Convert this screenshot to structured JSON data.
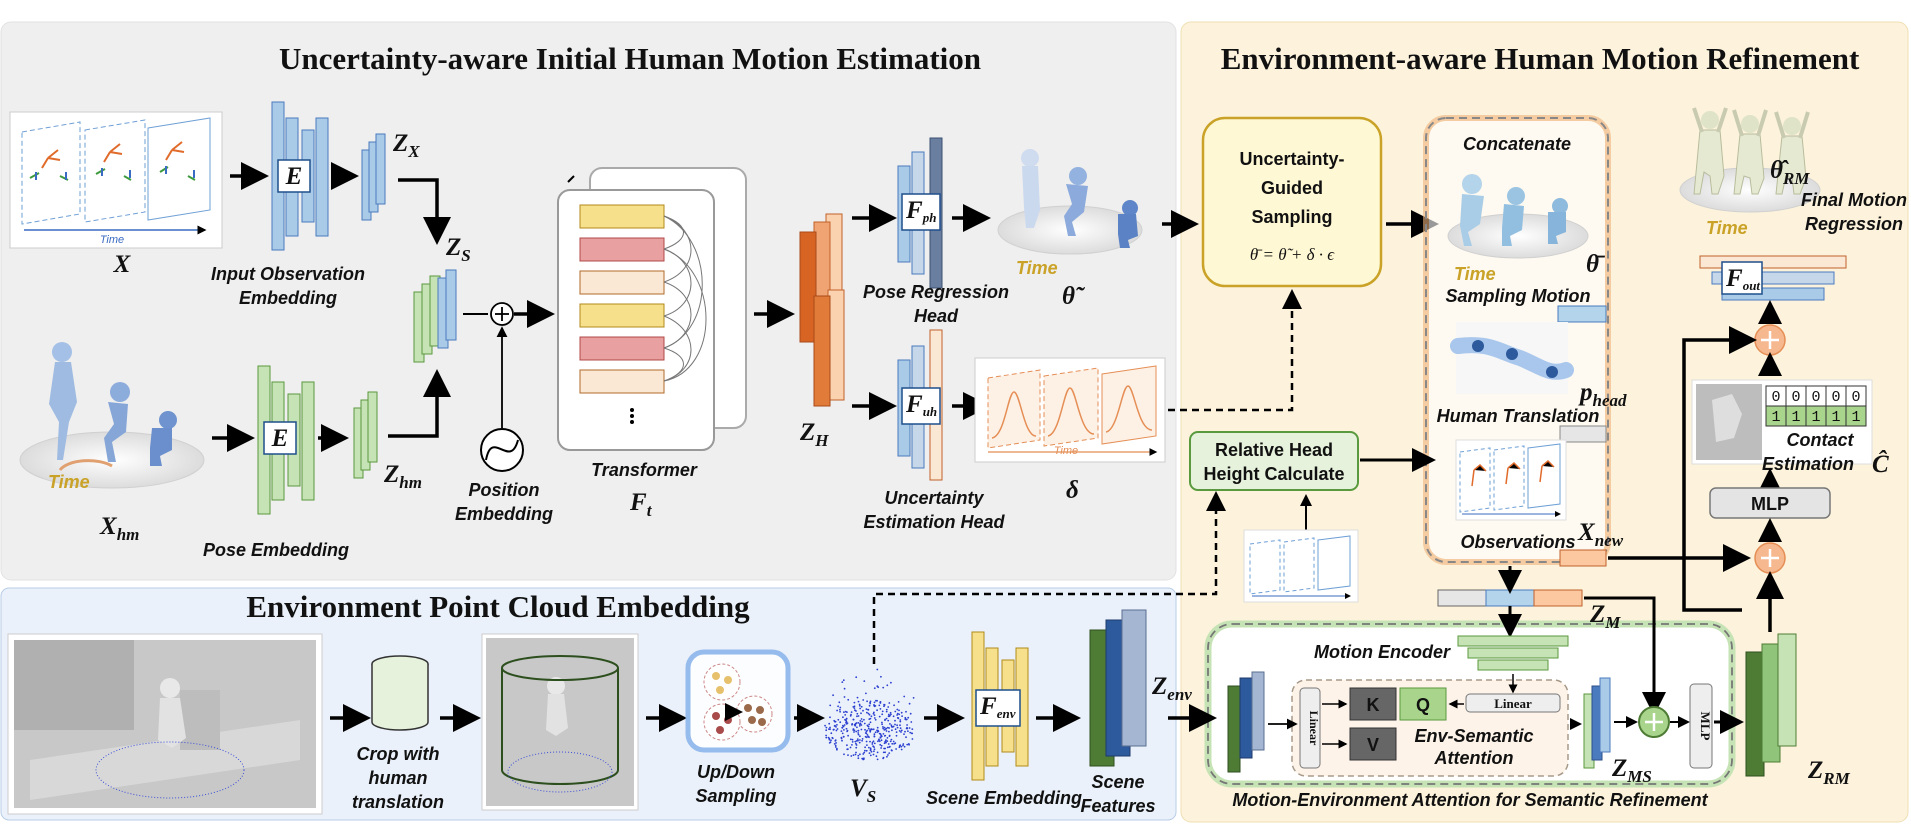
{
  "sections": {
    "initial": "Uncertainty-aware Initial Human Motion Estimation",
    "refine": "Environment-aware Human Motion Refinement",
    "pointcloud": "Environment Point Cloud Embedding"
  },
  "labels": {
    "input_obs_emb": [
      "Input Observation",
      "Embedding"
    ],
    "pose_emb": "Pose Embedding",
    "position_emb": [
      "Position",
      "Embedding"
    ],
    "transformer": "Transformer",
    "pose_head": [
      "Pose Regression",
      "Head"
    ],
    "unc_head": [
      "Uncertainty",
      "Estimation Head"
    ],
    "time": "Time",
    "sampling_motion": "Sampling Motion",
    "human_translation": "Human Translation",
    "observations": "Observations",
    "concatenate": "Concatenate",
    "final_motion": [
      "Final Motion",
      "Regression"
    ],
    "contact_estimation": [
      "Contact",
      "Estimation"
    ],
    "crop": [
      "Crop with",
      "human",
      "translation"
    ],
    "updown": [
      "Up/Down",
      "Sampling"
    ],
    "scene_emb": "Scene Embedding",
    "scene_feat": [
      "Scene",
      "Features"
    ],
    "motion_encoder": "Motion Encoder",
    "env_sem_attn": [
      "Env-Semantic",
      "Attention"
    ],
    "mea_caption": "Motion-Environment Attention for Semantic Refinement"
  },
  "boxes": {
    "ugs_title": [
      "Uncertainty-",
      "Guided",
      "Sampling"
    ],
    "ugs_formula": "θ̄ = θ̃ + δ · ϵ",
    "rhh": [
      "Relative Head",
      "Height Calculate"
    ],
    "mlp": "MLP",
    "linear": "Linear",
    "k": "K",
    "q": "Q",
    "v": "V",
    "e": "E"
  },
  "contact": {
    "row1": [
      "0",
      "0",
      "0",
      "0",
      "0"
    ],
    "row2": [
      "1",
      "1",
      "1",
      "1",
      "1"
    ]
  },
  "symbols": {
    "x": "X",
    "xhm": "X",
    "xhm_sub": "hm",
    "zx": "Z",
    "zx_sub": "X",
    "zs": "Z",
    "zs_sub": "S",
    "zhm": "Z",
    "zhm_sub": "hm",
    "ft": "F",
    "ft_sub": "t",
    "zh": "Z",
    "zh_sub": "H",
    "fph": "F",
    "fph_sub": "ph",
    "fuh": "F",
    "fuh_sub": "uh",
    "theta_tilde": "θ̃",
    "delta": "δ",
    "theta_bar": "θ̄",
    "phead": "p",
    "phead_sub": "head",
    "xnew": "X",
    "xnew_sub": "new",
    "zm": "Z",
    "zm_sub": "M",
    "zms": "Z",
    "zms_sub": "MS",
    "zrm": "Z",
    "zrm_sub": "RM",
    "theta_rm": "θ̂",
    "theta_rm_sub": "RM",
    "c_hat": "Ĉ",
    "fout": "F",
    "fout_sub": "out",
    "fenv": "F",
    "fenv_sub": "env",
    "zenv": "Z",
    "zenv_sub": "env",
    "vs": "V",
    "vs_sub": "S"
  },
  "colors": {
    "bg_initial": "#efefef",
    "bg_refine": "#fdf3dc",
    "bg_pointcloud": "#eaf1fa",
    "blue": "#a9cbe8",
    "green": "#c6e3b5",
    "darkgreen": "#4e7c35",
    "orange": "#e07b39",
    "yellow": "#f7e08c"
  }
}
